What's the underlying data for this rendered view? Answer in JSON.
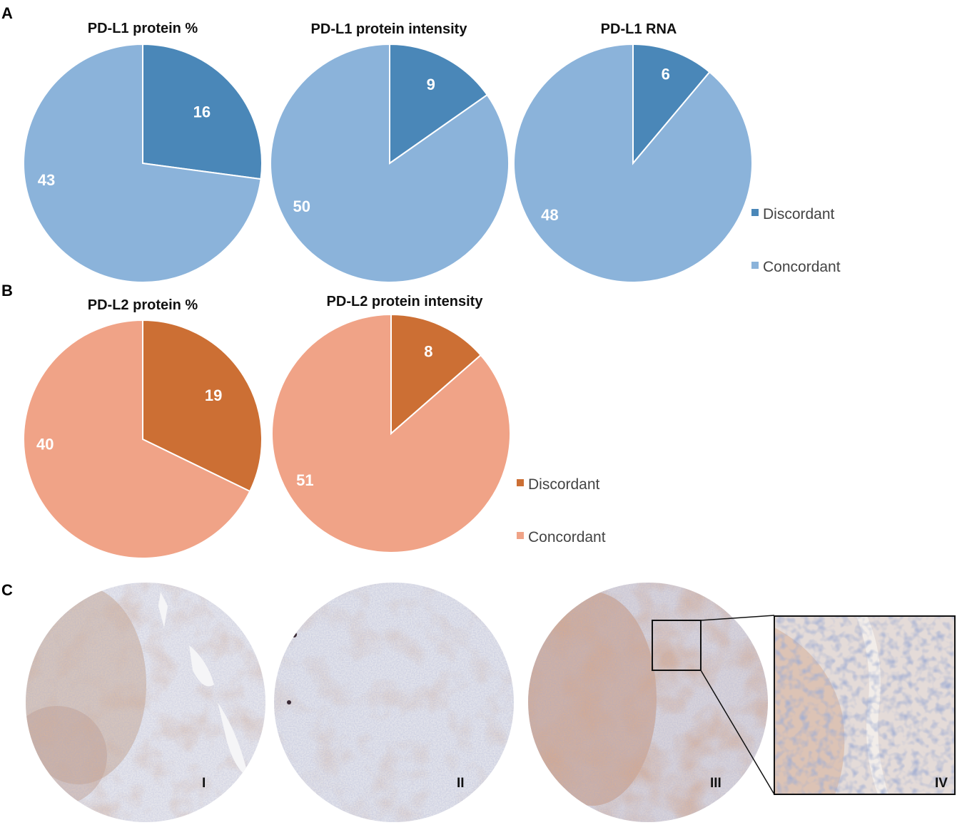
{
  "panels": {
    "a": "A",
    "b": "B",
    "c": "C"
  },
  "chart_data": [
    {
      "type": "pie",
      "title": "PD-L1 protein %",
      "categories": [
        "Discordant",
        "Concordant"
      ],
      "values": [
        16,
        43
      ],
      "colors": [
        "#4a87b8",
        "#8bb3da"
      ]
    },
    {
      "type": "pie",
      "title": "PD-L1 protein intensity",
      "categories": [
        "Discordant",
        "Concordant"
      ],
      "values": [
        9,
        50
      ],
      "colors": [
        "#4a87b8",
        "#8bb3da"
      ]
    },
    {
      "type": "pie",
      "title": "PD-L1 RNA",
      "categories": [
        "Discordant",
        "Concordant"
      ],
      "values": [
        6,
        48
      ],
      "colors": [
        "#4a87b8",
        "#8bb3da"
      ]
    },
    {
      "type": "pie",
      "title": "PD-L2 protein %",
      "categories": [
        "Discordant",
        "Concordant"
      ],
      "values": [
        19,
        40
      ],
      "colors": [
        "#cc6f34",
        "#f0a387"
      ]
    },
    {
      "type": "pie",
      "title": "PD-L2 protein intensity",
      "categories": [
        "Discordant",
        "Concordant"
      ],
      "values": [
        8,
        51
      ],
      "colors": [
        "#cc6f34",
        "#f0a387"
      ]
    }
  ],
  "legend_blue": [
    {
      "label": "Discordant",
      "color": "#4a87b8"
    },
    {
      "label": "Concordant",
      "color": "#8bb3da"
    }
  ],
  "legend_orange": [
    {
      "label": "Discordant",
      "color": "#cc6f34"
    },
    {
      "label": "Concordant",
      "color": "#f0a387"
    }
  ],
  "micrographs": [
    {
      "label": "I"
    },
    {
      "label": "II"
    },
    {
      "label": "III"
    },
    {
      "label": "IV"
    }
  ]
}
